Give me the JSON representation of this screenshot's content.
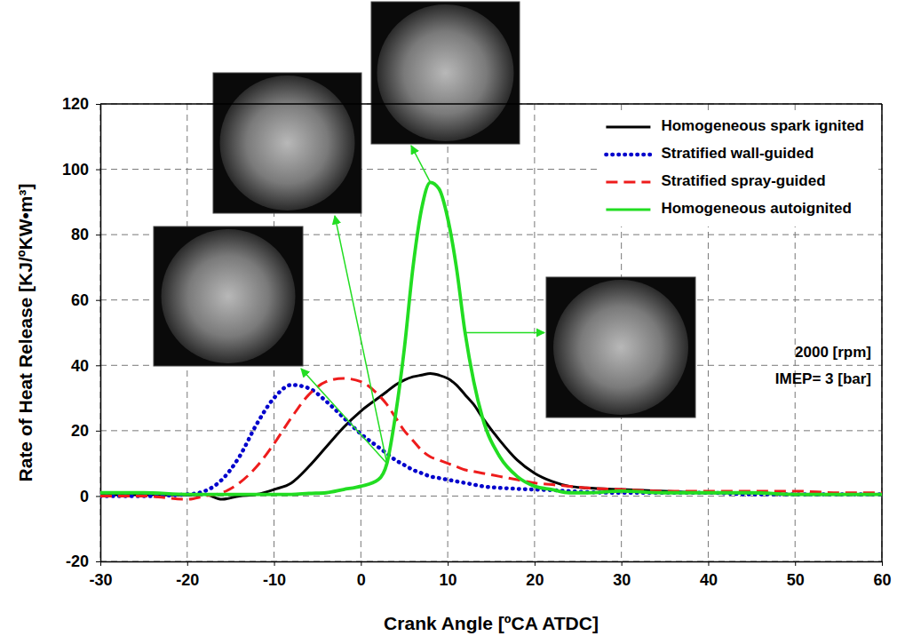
{
  "chart_data": {
    "type": "line",
    "x_label": "Crank Angle [ºCA ATDC]",
    "y_label": "Rate of Heat Release [KJ/ºKW•m³]",
    "annotations": [
      "2000 [rpm]",
      "IMEP= 3 [bar]"
    ],
    "xlim": [
      -30,
      60
    ],
    "xticks": [
      -30,
      -20,
      -10,
      0,
      10,
      20,
      30,
      40,
      50,
      60
    ],
    "ylim": [
      -20,
      120
    ],
    "yticks": [
      -20,
      0,
      20,
      40,
      60,
      80,
      100,
      120
    ],
    "grid": true,
    "legend": "upper right",
    "x": [
      -30,
      -25,
      -20,
      -18,
      -16,
      -14,
      -12,
      -10,
      -8,
      -6,
      -4,
      -2,
      0,
      2,
      3,
      4,
      5,
      6,
      7,
      8,
      9,
      10,
      11,
      12,
      13,
      14,
      16,
      18,
      20,
      22,
      24,
      26,
      30,
      35,
      40,
      45,
      50,
      55,
      60
    ],
    "series": [
      {
        "name": "Homogeneous spark ignited",
        "color": "#000000",
        "line_style": "solid",
        "values": [
          0.5,
          0.5,
          0.3,
          0.5,
          -1,
          0,
          0.5,
          2,
          4,
          9,
          15,
          21,
          26,
          30,
          32,
          34,
          35.5,
          36.5,
          37,
          37.5,
          37,
          36,
          34,
          31,
          28,
          24,
          17,
          11,
          7,
          4.5,
          3,
          2.5,
          2,
          1.5,
          1,
          1,
          0.5,
          0.5,
          0.5
        ]
      },
      {
        "name": "Stratified wall-guided",
        "color": "#0000cc",
        "line_style": "dotted",
        "values": [
          0,
          0,
          0.5,
          1.5,
          5,
          12,
          22,
          30,
          34,
          33,
          29,
          24,
          19,
          15,
          13,
          11,
          9.5,
          8,
          7,
          6,
          5.5,
          5,
          4.5,
          4,
          3.5,
          3,
          2.5,
          2.2,
          2,
          1.8,
          1.5,
          1.2,
          1,
          1,
          1,
          0.5,
          0.5,
          0.5,
          0.5
        ]
      },
      {
        "name": "Stratified spray-guided",
        "color": "#ee1c1c",
        "line_style": "dashed",
        "values": [
          0,
          0,
          -1,
          0,
          1,
          4,
          9,
          16,
          24,
          31,
          35,
          36,
          35,
          31,
          28,
          24,
          20,
          17,
          14,
          12,
          11,
          10,
          9,
          8,
          7.5,
          7,
          6,
          5,
          4,
          3.5,
          3,
          2.5,
          2,
          1.5,
          1.5,
          1.5,
          1.5,
          1,
          1
        ]
      },
      {
        "name": "Homogeneous autoignited",
        "color": "#22dd22",
        "line_style": "solid",
        "values": [
          1,
          1,
          0.5,
          0.5,
          0.5,
          0.5,
          0.5,
          0.5,
          0.5,
          0.8,
          1,
          2,
          3,
          5,
          10,
          25,
          45,
          70,
          88,
          96,
          94,
          85,
          70,
          50,
          35,
          24,
          12,
          6,
          3,
          2,
          1,
          1,
          1.5,
          1,
          1,
          1,
          0.5,
          0.5,
          0.5
        ]
      }
    ]
  }
}
